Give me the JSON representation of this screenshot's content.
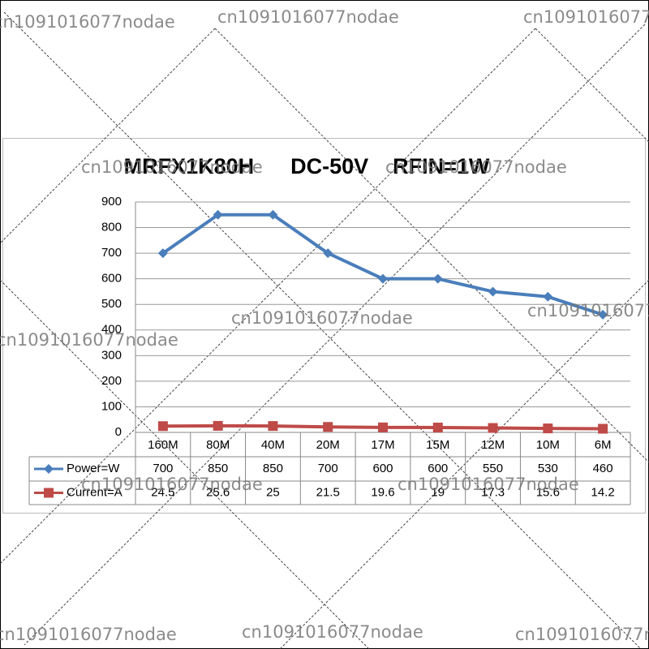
{
  "chart_data": {
    "type": "line",
    "title": "MRFX1K80H      DC-50V    RFIN=1W",
    "watermark": "cn1091016077nodae",
    "categories": [
      "160M",
      "80M",
      "40M",
      "20M",
      "17M",
      "15M",
      "12M",
      "10M",
      "6M"
    ],
    "series": [
      {
        "name": "Power=W",
        "color": "#4a7ebb",
        "marker": "diamond",
        "values": [
          700,
          850,
          850,
          700,
          600,
          600,
          550,
          530,
          460
        ]
      },
      {
        "name": "Current=A",
        "color": "#be4b48",
        "marker": "square",
        "values": [
          24.5,
          25.6,
          25,
          21.5,
          19.6,
          19,
          17.3,
          15.6,
          14.2
        ]
      }
    ],
    "ylim": [
      0,
      900
    ],
    "yticks": [
      0,
      100,
      200,
      300,
      400,
      500,
      600,
      700,
      800,
      900
    ],
    "grid": true,
    "data_table": true
  }
}
